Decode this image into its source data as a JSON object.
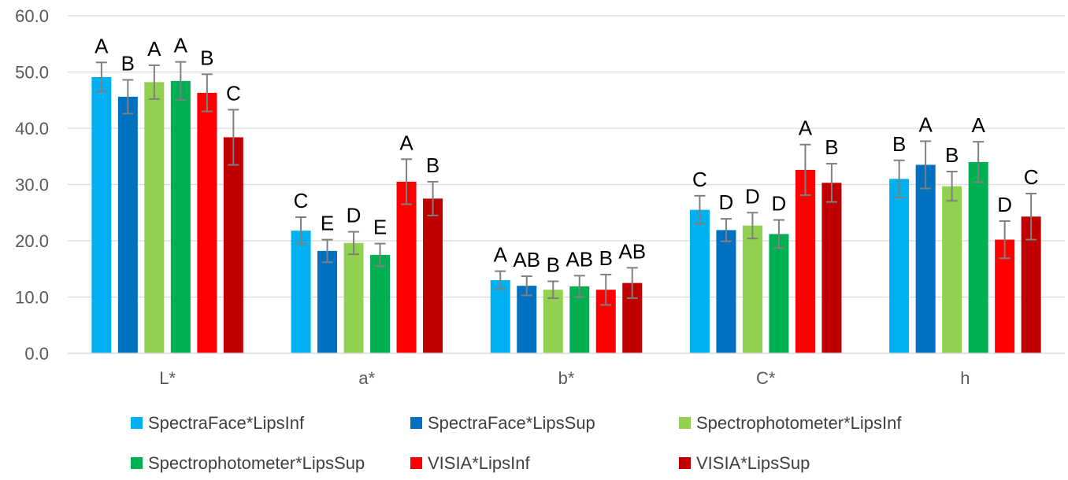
{
  "chart_data": {
    "type": "bar",
    "title": "",
    "xlabel": "",
    "ylabel": "",
    "ylim": [
      0,
      60
    ],
    "yticks": [
      "0.0",
      "10.0",
      "20.0",
      "30.0",
      "40.0",
      "50.0",
      "60.0"
    ],
    "categories": [
      "L*",
      "a*",
      "b*",
      "C*",
      "h"
    ],
    "grid": "horizontal",
    "legend_position": "bottom",
    "series": [
      {
        "name": "SpectraFace*LipsInf",
        "color": "#00B0F0",
        "values": [
          49.1,
          21.8,
          13.0,
          25.5,
          31.0
        ],
        "errors": [
          2.6,
          2.4,
          1.6,
          2.5,
          3.3
        ],
        "groups": [
          "A",
          "C",
          "A",
          "C",
          "B"
        ]
      },
      {
        "name": "SpectraFace*LipsSup",
        "color": "#0070C0",
        "values": [
          45.6,
          18.2,
          12.0,
          21.9,
          33.5
        ],
        "errors": [
          3.0,
          2.0,
          1.7,
          2.0,
          4.2
        ],
        "groups": [
          "B",
          "E",
          "AB",
          "D",
          "A"
        ]
      },
      {
        "name": "Spectrophotometer*LipsInf",
        "color": "#92D050",
        "values": [
          48.2,
          19.6,
          11.3,
          22.7,
          29.7
        ],
        "errors": [
          3.0,
          2.0,
          1.5,
          2.3,
          2.6
        ],
        "groups": [
          "A",
          "D",
          "B",
          "D",
          "B"
        ]
      },
      {
        "name": "Spectrophotometer*LipsSup",
        "color": "#00B050",
        "values": [
          48.4,
          17.5,
          11.9,
          21.2,
          34.0
        ],
        "errors": [
          3.4,
          2.0,
          1.9,
          2.5,
          3.6
        ],
        "groups": [
          "A",
          "E",
          "AB",
          "D",
          "A"
        ]
      },
      {
        "name": "VISIA*LipsInf",
        "color": "#FF0000",
        "values": [
          46.3,
          30.5,
          11.3,
          32.6,
          20.2
        ],
        "errors": [
          3.3,
          4.0,
          2.7,
          4.5,
          3.3
        ],
        "groups": [
          "B",
          "A",
          "B",
          "A",
          "D"
        ]
      },
      {
        "name": "VISIA*LipsSup",
        "color": "#C00000",
        "values": [
          38.4,
          27.5,
          12.5,
          30.3,
          24.3
        ],
        "errors": [
          4.9,
          3.0,
          2.7,
          3.4,
          4.1
        ],
        "groups": [
          "C",
          "B",
          "AB",
          "B",
          "C"
        ]
      }
    ]
  }
}
